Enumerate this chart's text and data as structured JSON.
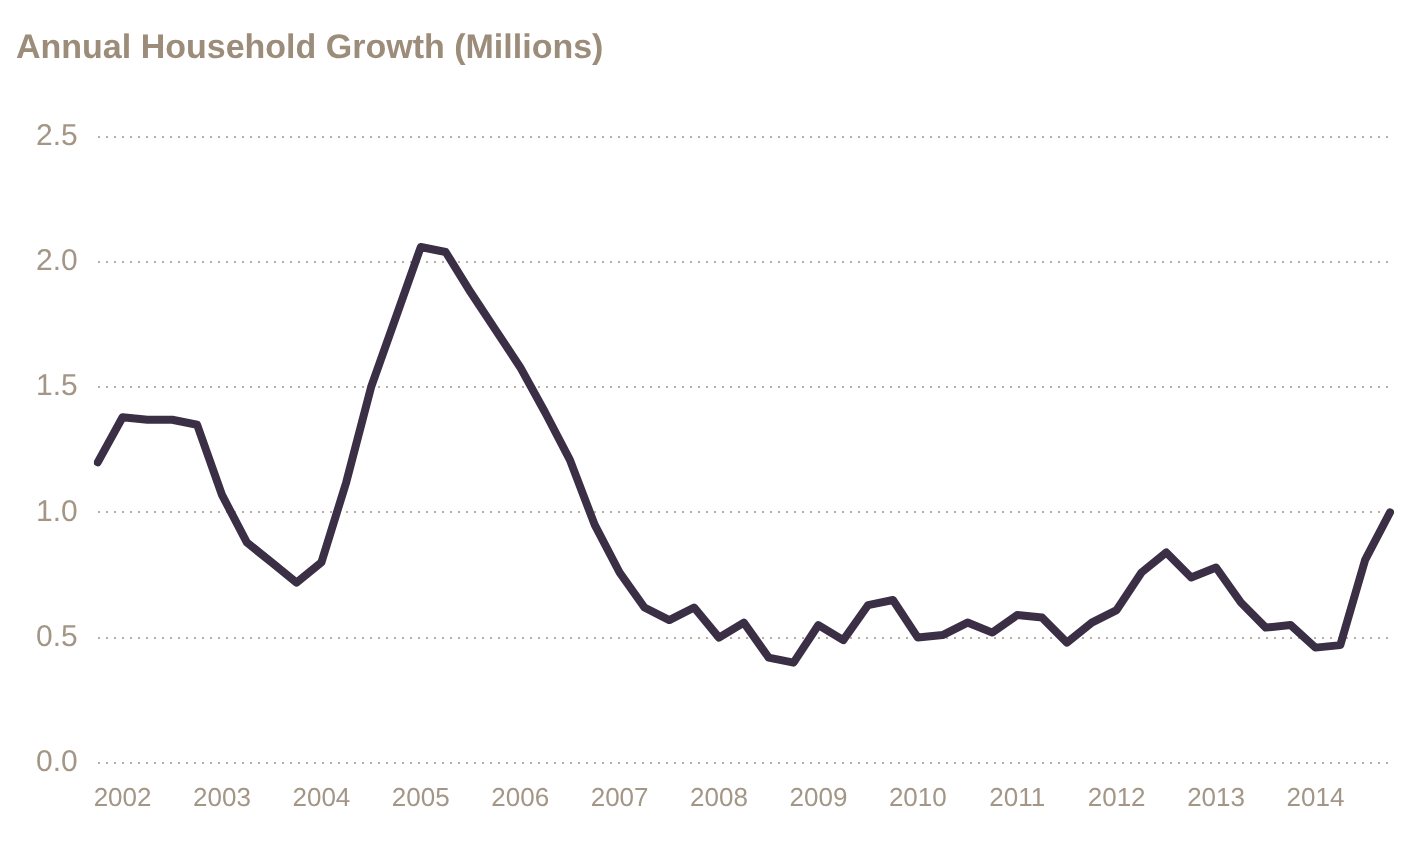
{
  "chart_data": {
    "type": "line",
    "title": "Annual Household Growth (Millions)",
    "categories": [
      null,
      "2002",
      null,
      null,
      null,
      "2003",
      null,
      null,
      null,
      "2004",
      null,
      null,
      null,
      "2005",
      null,
      null,
      null,
      "2006",
      null,
      null,
      null,
      "2007",
      null,
      null,
      null,
      "2008",
      null,
      null,
      null,
      "2009",
      null,
      null,
      null,
      "2010",
      null,
      null,
      null,
      "2011",
      null,
      null,
      null,
      "2012",
      null,
      null,
      null,
      "2013",
      null,
      null,
      null,
      "2014",
      null,
      null,
      null
    ],
    "series": [
      {
        "color": "#3b2f45",
        "values": [
          1.2,
          1.38,
          1.37,
          1.37,
          1.35,
          1.07,
          0.88,
          0.8,
          0.72,
          0.8,
          1.12,
          1.5,
          1.78,
          2.06,
          2.04,
          1.88,
          1.73,
          1.58,
          1.4,
          1.21,
          0.95,
          0.76,
          0.62,
          0.57,
          0.62,
          0.5,
          0.56,
          0.42,
          0.4,
          0.55,
          0.49,
          0.63,
          0.65,
          0.5,
          0.51,
          0.56,
          0.52,
          0.59,
          0.58,
          0.48,
          0.56,
          0.61,
          0.76,
          0.84,
          0.74,
          0.78,
          0.64,
          0.54,
          0.55,
          0.46,
          0.47,
          0.81,
          1.0
        ]
      }
    ],
    "ylim": [
      0,
      2.5
    ],
    "yticks": [
      {
        "value": 0,
        "label": "0.0"
      },
      {
        "value": 0.5,
        "label": "0.5"
      },
      {
        "value": 1,
        "label": "1.0"
      },
      {
        "value": 1.5,
        "label": "1.5"
      },
      {
        "value": 2,
        "label": "2.0"
      },
      {
        "value": 2.5,
        "label": "2.5"
      }
    ],
    "grid": "y",
    "legend": false,
    "marker": "none",
    "line_style": "solid"
  }
}
